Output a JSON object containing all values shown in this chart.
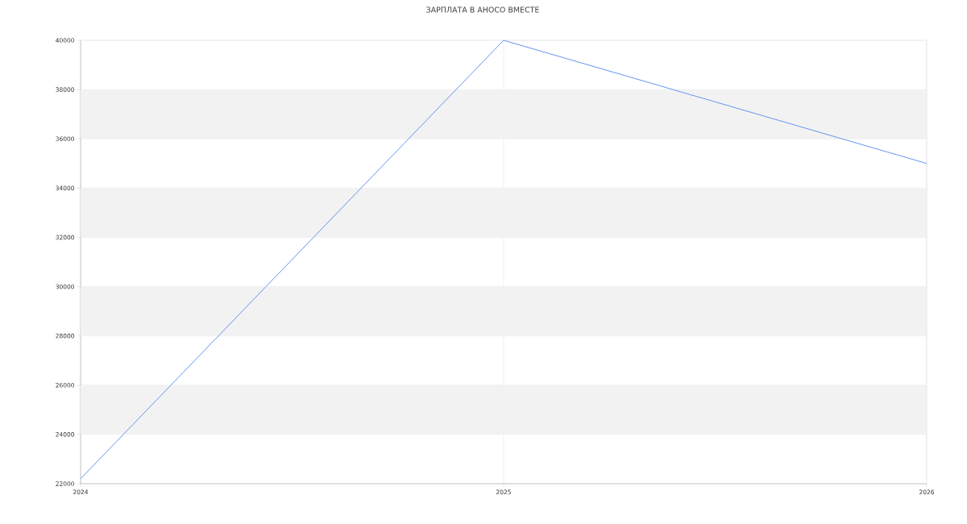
{
  "chart_data": {
    "type": "line",
    "title": "ЗАРПЛАТА В АНОСО ВМЕСТЕ",
    "x": [
      2024,
      2025,
      2026
    ],
    "series": [
      {
        "color": "#6495ed",
        "values": [
          22200,
          40000,
          35000
        ]
      }
    ],
    "xlim": [
      2024,
      2026
    ],
    "xticks": [
      2024,
      2025,
      2026
    ],
    "ylim": [
      22000,
      40000
    ],
    "yticks": [
      22000,
      24000,
      26000,
      28000,
      30000,
      32000,
      34000,
      36000,
      38000,
      40000
    ],
    "grid": true,
    "marker": "none",
    "line_style": "solid"
  }
}
